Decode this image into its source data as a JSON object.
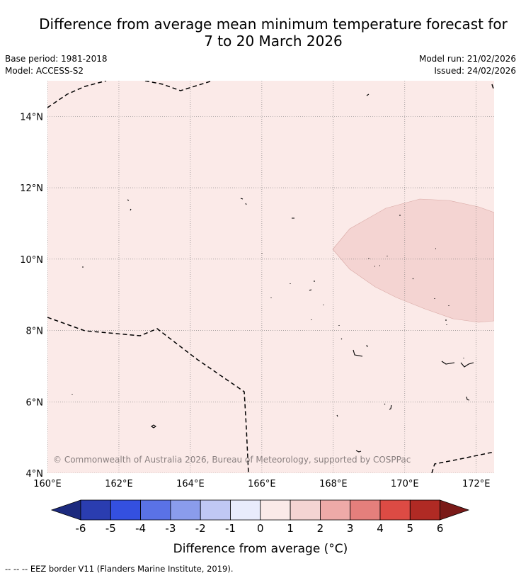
{
  "title": {
    "line1": "Difference from average mean minimum temperature forecast for",
    "line2": "7 to 20 March 2026"
  },
  "meta": {
    "base_period": "Base period: 1981-2018",
    "model": "Model: ACCESS-S2",
    "model_run": "Model run: 21/02/2026",
    "issued": "Issued: 24/02/2026"
  },
  "map": {
    "lon_labels": [
      "160°E",
      "162°E",
      "164°E",
      "166°E",
      "168°E",
      "170°E",
      "172°E"
    ],
    "lat_labels": [
      "14°N",
      "12°N",
      "10°N",
      "8°N",
      "6°N",
      "4°N"
    ],
    "extent": {
      "lon_min": 160,
      "lon_max": 172.5,
      "lat_min": 4,
      "lat_max": 15
    },
    "base_category": "0 to 1",
    "highlight_category": "1 to 2",
    "attribution": "© Commonwealth of Australia 2026, Bureau of Meteorology, supported by COSPPac"
  },
  "colorbar": {
    "label": "Difference from average (°C)",
    "ticks": [
      "-6",
      "-5",
      "-4",
      "-3",
      "-2",
      "-1",
      "0",
      "1",
      "2",
      "3",
      "4",
      "5",
      "6"
    ],
    "colors": {
      "under": "#1c2a7e",
      "bins": [
        "#2a3db0",
        "#3450e0",
        "#5a72e6",
        "#8a9cec",
        "#c0c8f4",
        "#e8ecfc",
        "#fbeae8",
        "#f4d4d2",
        "#eeaaa8",
        "#e57f7c",
        "#dc4b44",
        "#b02a24"
      ],
      "over": "#7a1a18"
    }
  },
  "footer": {
    "legend": "--  --  -- EEZ border V11 (Flanders Marine Institute, 2019)."
  }
}
